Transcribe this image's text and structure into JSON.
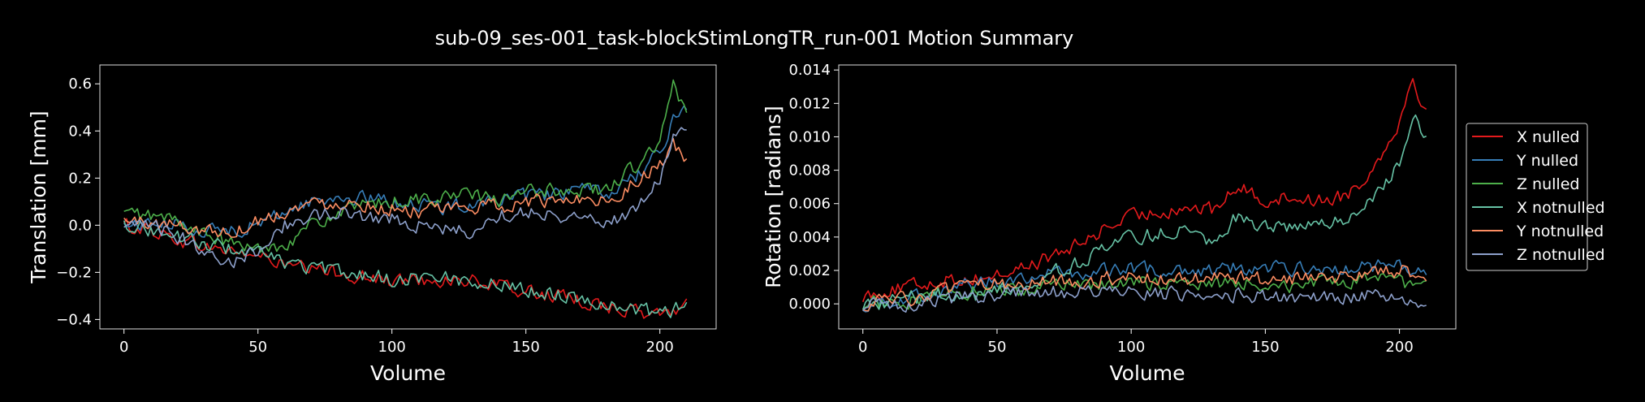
{
  "figure": {
    "title": "sub-09_ses-001_task-blockStimLongTR_run-001 Motion Summary",
    "background": "#000000",
    "foreground": "#ffffff"
  },
  "legend": {
    "placement": "right-center",
    "entries": [
      "X nulled",
      "Y nulled",
      "Z nulled",
      "X notnulled",
      "Y notnulled",
      "Z notnulled"
    ]
  },
  "series_colors": [
    "#e41a1c",
    "#377eb8",
    "#4daf4a",
    "#66c2a5",
    "#fc8d62",
    "#8da0cb"
  ],
  "chart_data": [
    {
      "type": "line",
      "name": "translation",
      "xlabel": "Volume",
      "ylabel": "Translation [mm]",
      "xlim": [
        -9,
        221
      ],
      "ylim": [
        -0.44,
        0.68
      ],
      "xticks": [
        0,
        50,
        100,
        150,
        200
      ],
      "yticks": [
        -0.4,
        -0.2,
        0.0,
        0.2,
        0.4,
        0.6
      ],
      "ytick_labels": [
        "−0.4",
        "−0.2",
        "0.0",
        "0.2",
        "0.4",
        "0.6"
      ],
      "grid": false,
      "x_range": [
        0,
        210
      ],
      "series": [
        {
          "name": "X nulled",
          "x": [
            0,
            10,
            20,
            30,
            40,
            50,
            60,
            70,
            80,
            90,
            100,
            110,
            120,
            130,
            140,
            150,
            160,
            170,
            180,
            190,
            200,
            205,
            210
          ],
          "y": [
            0.0,
            -0.02,
            -0.06,
            -0.09,
            -0.11,
            -0.13,
            -0.17,
            -0.19,
            -0.2,
            -0.22,
            -0.24,
            -0.23,
            -0.23,
            -0.24,
            -0.26,
            -0.28,
            -0.3,
            -0.32,
            -0.34,
            -0.37,
            -0.38,
            -0.37,
            -0.32
          ]
        },
        {
          "name": "Y nulled",
          "x": [
            0,
            10,
            20,
            30,
            40,
            50,
            60,
            70,
            80,
            90,
            100,
            110,
            120,
            130,
            140,
            150,
            160,
            170,
            180,
            190,
            200,
            205,
            210
          ],
          "y": [
            0.0,
            0.01,
            0.0,
            -0.02,
            -0.02,
            0.0,
            0.06,
            0.1,
            0.12,
            0.11,
            0.1,
            0.09,
            0.07,
            0.1,
            0.11,
            0.12,
            0.13,
            0.15,
            0.13,
            0.2,
            0.3,
            0.45,
            0.5
          ]
        },
        {
          "name": "Z nulled",
          "x": [
            0,
            10,
            20,
            30,
            40,
            50,
            60,
            70,
            80,
            90,
            100,
            110,
            120,
            130,
            140,
            150,
            160,
            170,
            180,
            190,
            200,
            205,
            210
          ],
          "y": [
            0.05,
            0.04,
            0.02,
            -0.04,
            -0.08,
            -0.1,
            -0.08,
            0.0,
            0.05,
            0.08,
            0.1,
            0.11,
            0.12,
            0.13,
            0.1,
            0.14,
            0.15,
            0.15,
            0.15,
            0.24,
            0.35,
            0.6,
            0.45
          ]
        },
        {
          "name": "X notnulled",
          "x": [
            0,
            10,
            20,
            30,
            40,
            50,
            60,
            70,
            80,
            90,
            100,
            110,
            120,
            130,
            140,
            150,
            160,
            170,
            180,
            190,
            200,
            205,
            210
          ],
          "y": [
            0.01,
            -0.02,
            -0.05,
            -0.08,
            -0.1,
            -0.12,
            -0.16,
            -0.18,
            -0.2,
            -0.21,
            -0.23,
            -0.22,
            -0.22,
            -0.24,
            -0.25,
            -0.27,
            -0.29,
            -0.31,
            -0.33,
            -0.36,
            -0.37,
            -0.36,
            -0.31
          ]
        },
        {
          "name": "Y notnulled",
          "x": [
            0,
            10,
            20,
            30,
            40,
            50,
            60,
            70,
            80,
            90,
            100,
            110,
            120,
            130,
            140,
            150,
            160,
            170,
            180,
            190,
            200,
            205,
            210
          ],
          "y": [
            0.02,
            0.01,
            0.0,
            -0.02,
            -0.03,
            0.02,
            0.06,
            0.09,
            0.1,
            0.09,
            0.07,
            0.06,
            0.06,
            0.08,
            0.08,
            0.1,
            0.1,
            0.12,
            0.1,
            0.18,
            0.25,
            0.35,
            0.26
          ]
        },
        {
          "name": "Z notnulled",
          "x": [
            0,
            10,
            20,
            30,
            40,
            50,
            60,
            70,
            80,
            90,
            100,
            110,
            120,
            130,
            140,
            150,
            160,
            170,
            180,
            190,
            200,
            205,
            210
          ],
          "y": [
            -0.02,
            0.0,
            -0.05,
            -0.1,
            -0.16,
            -0.1,
            0.0,
            0.04,
            0.05,
            0.04,
            0.03,
            0.0,
            -0.02,
            -0.03,
            0.04,
            0.06,
            0.05,
            0.03,
            0.02,
            0.05,
            0.2,
            0.38,
            0.4
          ]
        }
      ]
    },
    {
      "type": "line",
      "name": "rotation",
      "xlabel": "Volume",
      "ylabel": "Rotation [radians]",
      "xlim": [
        -9,
        221
      ],
      "ylim": [
        -0.0015,
        0.0143
      ],
      "xticks": [
        0,
        50,
        100,
        150,
        200
      ],
      "yticks": [
        0.0,
        0.002,
        0.004,
        0.006,
        0.008,
        0.01,
        0.012,
        0.014
      ],
      "ytick_labels": [
        "0.000",
        "0.002",
        "0.004",
        "0.006",
        "0.008",
        "0.010",
        "0.012",
        "0.014"
      ],
      "grid": false,
      "x_range": [
        0,
        210
      ],
      "series": [
        {
          "name": "X nulled",
          "x": [
            0,
            10,
            20,
            30,
            40,
            50,
            60,
            70,
            80,
            90,
            100,
            110,
            120,
            130,
            140,
            150,
            160,
            170,
            180,
            190,
            200,
            205,
            210
          ],
          "y": [
            0.0005,
            0.0008,
            0.0011,
            0.0014,
            0.0015,
            0.0017,
            0.0022,
            0.0028,
            0.0035,
            0.0045,
            0.0052,
            0.0055,
            0.0058,
            0.0056,
            0.007,
            0.0062,
            0.0064,
            0.0062,
            0.0065,
            0.008,
            0.011,
            0.0135,
            0.0115
          ]
        },
        {
          "name": "Y nulled",
          "x": [
            0,
            10,
            20,
            30,
            40,
            50,
            60,
            70,
            80,
            90,
            100,
            110,
            120,
            130,
            140,
            150,
            160,
            170,
            180,
            190,
            200,
            205,
            210
          ],
          "y": [
            0.0,
            0.0002,
            0.0005,
            0.0008,
            0.0011,
            0.0014,
            0.0016,
            0.0018,
            0.0018,
            0.002,
            0.0021,
            0.002,
            0.0021,
            0.002,
            0.0022,
            0.0021,
            0.0021,
            0.0022,
            0.0021,
            0.0022,
            0.0023,
            0.002,
            0.0018
          ]
        },
        {
          "name": "Z nulled",
          "x": [
            0,
            10,
            20,
            30,
            40,
            50,
            60,
            70,
            80,
            90,
            100,
            110,
            120,
            130,
            140,
            150,
            160,
            170,
            180,
            190,
            200,
            205,
            210
          ],
          "y": [
            0.0,
            0.0001,
            0.0003,
            0.0005,
            0.0007,
            0.0009,
            0.0008,
            0.001,
            0.0012,
            0.0011,
            0.0012,
            0.0013,
            0.0011,
            0.0012,
            0.0013,
            0.0012,
            0.0011,
            0.0012,
            0.0013,
            0.0014,
            0.0013,
            0.0011,
            0.0009
          ]
        },
        {
          "name": "X notnulled",
          "x": [
            0,
            10,
            20,
            30,
            40,
            50,
            60,
            70,
            80,
            90,
            100,
            110,
            120,
            130,
            140,
            150,
            160,
            170,
            180,
            190,
            200,
            205,
            210
          ],
          "y": [
            0.0,
            0.0002,
            0.0004,
            0.0006,
            0.0004,
            0.0008,
            0.0012,
            0.0018,
            0.0025,
            0.0032,
            0.004,
            0.0042,
            0.0045,
            0.0038,
            0.0053,
            0.0046,
            0.0045,
            0.0048,
            0.005,
            0.0062,
            0.0085,
            0.0112,
            0.0102
          ]
        },
        {
          "name": "Y notnulled",
          "x": [
            0,
            10,
            20,
            30,
            40,
            50,
            60,
            70,
            80,
            90,
            100,
            110,
            120,
            130,
            140,
            150,
            160,
            170,
            180,
            190,
            200,
            205,
            210
          ],
          "y": [
            0.0,
            0.0002,
            0.0004,
            0.0007,
            0.001,
            0.0012,
            0.0013,
            0.0014,
            0.0014,
            0.0015,
            0.0016,
            0.0015,
            0.0014,
            0.0015,
            0.0016,
            0.0014,
            0.0015,
            0.0016,
            0.0017,
            0.0018,
            0.002,
            0.0019,
            0.0018
          ]
        },
        {
          "name": "Z notnulled",
          "x": [
            0,
            10,
            20,
            30,
            40,
            50,
            60,
            70,
            80,
            90,
            100,
            110,
            120,
            130,
            140,
            150,
            160,
            170,
            180,
            190,
            200,
            205,
            210
          ],
          "y": [
            -0.0001,
            -0.0001,
            0.0001,
            0.0003,
            0.0004,
            0.0005,
            0.0006,
            0.0007,
            0.0007,
            0.0006,
            0.0007,
            0.0006,
            0.0006,
            0.0005,
            0.0006,
            0.0005,
            0.0004,
            0.0005,
            0.0004,
            0.0005,
            0.0004,
            0.0002,
            -0.0002
          ]
        }
      ]
    }
  ]
}
